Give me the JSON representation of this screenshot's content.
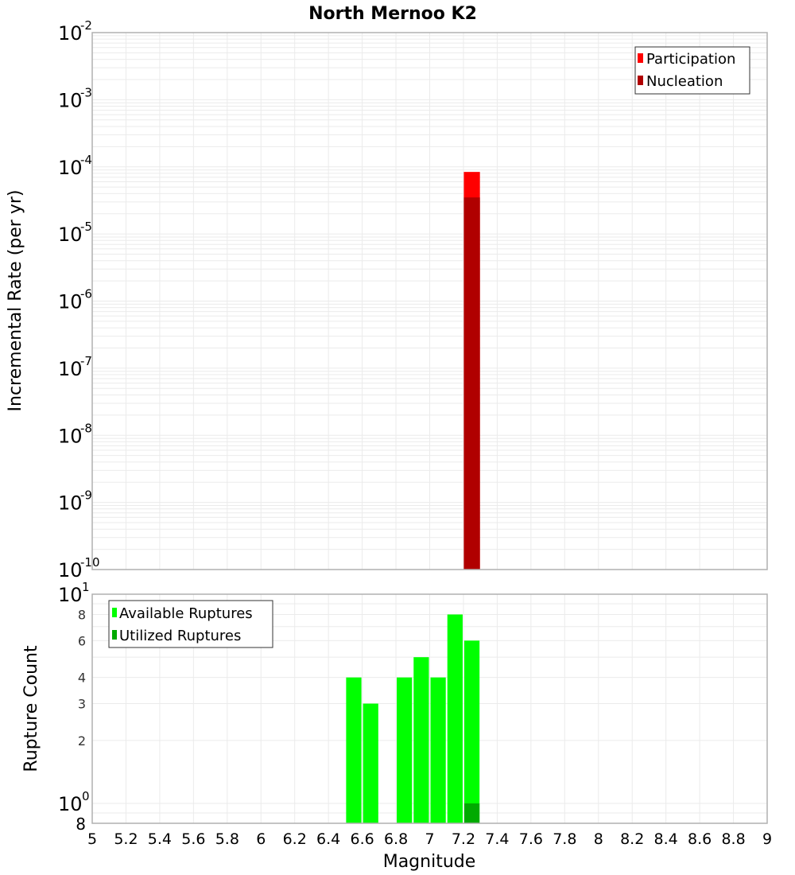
{
  "title": "North Mernoo K2",
  "colors": {
    "participation": "#ff0000",
    "nucleation": "#b00000",
    "available": "#00ff00",
    "utilized": "#00aa00",
    "grid": "#ebebeb",
    "frame": "#b0b0b0"
  },
  "top_plot": {
    "ylabel": "Incremental Rate (per yr)",
    "y_ticks": [
      {
        "base": "10",
        "exp": "-2"
      },
      {
        "base": "10",
        "exp": "-3"
      },
      {
        "base": "10",
        "exp": "-4"
      },
      {
        "base": "10",
        "exp": "-5"
      },
      {
        "base": "10",
        "exp": "-6"
      },
      {
        "base": "10",
        "exp": "-7"
      },
      {
        "base": "10",
        "exp": "-8"
      },
      {
        "base": "10",
        "exp": "-9"
      },
      {
        "base": "10",
        "exp": "-10"
      }
    ],
    "legend": [
      {
        "label": "Participation",
        "color": "#ff0000"
      },
      {
        "label": "Nucleation",
        "color": "#b00000"
      }
    ]
  },
  "bottom_plot": {
    "ylabel": "Rupture Count",
    "y_ticks_major": [
      {
        "base": "10",
        "exp": "1"
      },
      {
        "base": "10",
        "exp": "0"
      }
    ],
    "y_ticks_minor": [
      "8",
      "6",
      "4",
      "3",
      "2",
      "8"
    ],
    "legend": [
      {
        "label": "Available Ruptures",
        "color": "#00ff00"
      },
      {
        "label": "Utilized Ruptures",
        "color": "#00aa00"
      }
    ]
  },
  "x_axis": {
    "label": "Magnitude",
    "ticks": [
      "5",
      "5.2",
      "5.4",
      "5.6",
      "5.8",
      "6",
      "6.2",
      "6.4",
      "6.6",
      "6.8",
      "7",
      "7.2",
      "7.4",
      "7.6",
      "7.8",
      "8",
      "8.2",
      "8.4",
      "8.6",
      "8.8",
      "9"
    ]
  },
  "chart_data": [
    {
      "type": "bar",
      "title": "North Mernoo K2",
      "xlabel": "Magnitude",
      "ylabel": "Incremental Rate (per yr)",
      "yscale": "log",
      "xlim": [
        5,
        9
      ],
      "ylim": [
        1e-10,
        0.01
      ],
      "grid": true,
      "legend_position": "upper right",
      "bin_width": 0.1,
      "x": [
        7.25
      ],
      "series": [
        {
          "name": "Participation",
          "color": "#ff0000",
          "values": [
            8.4e-05
          ]
        },
        {
          "name": "Nucleation",
          "color": "#b00000",
          "values": [
            3.5e-05
          ]
        }
      ]
    },
    {
      "type": "bar",
      "xlabel": "Magnitude",
      "ylabel": "Rupture Count",
      "yscale": "log",
      "xlim": [
        5,
        9
      ],
      "ylim": [
        0.8,
        10
      ],
      "grid": true,
      "legend_position": "upper left",
      "bin_width": 0.1,
      "x": [
        6.55,
        6.65,
        6.85,
        6.95,
        7.05,
        7.15,
        7.25
      ],
      "series": [
        {
          "name": "Available Ruptures",
          "color": "#00ff00",
          "values": [
            4,
            3,
            4,
            5,
            4,
            8,
            6
          ]
        },
        {
          "name": "Utilized Ruptures",
          "color": "#00aa00",
          "values": [
            0,
            0,
            0,
            0,
            0,
            0,
            1
          ]
        }
      ]
    }
  ]
}
